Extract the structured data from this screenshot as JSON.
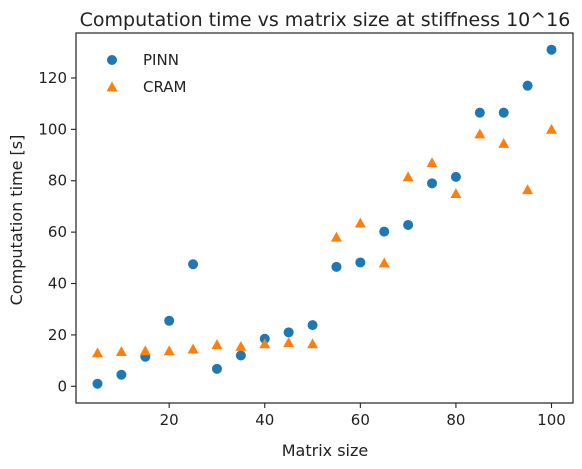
{
  "chart_data": {
    "type": "scatter",
    "title": "Computation time vs matrix size at stiffness 10^16",
    "xlabel": "Matrix size",
    "ylabel": "Computation time [s]",
    "xlim": [
      0.5,
      104.5
    ],
    "ylim": [
      -6.5,
      137.5
    ],
    "xticks": [
      20,
      40,
      60,
      80,
      100
    ],
    "yticks": [
      0,
      20,
      40,
      60,
      80,
      100,
      120
    ],
    "grid": false,
    "legend_position": "top-left",
    "series": [
      {
        "name": "PINN",
        "marker": "circle",
        "color": "#1f77b4",
        "x": [
          5,
          10,
          15,
          20,
          25,
          30,
          35,
          40,
          45,
          50,
          55,
          60,
          65,
          70,
          75,
          80,
          85,
          90,
          95,
          100
        ],
        "y": [
          1,
          4.5,
          11.5,
          25.5,
          47.5,
          6.8,
          12,
          18.5,
          21,
          23.8,
          46.5,
          48.2,
          60.2,
          62.8,
          79,
          81.5,
          106.5,
          106.5,
          117,
          131
        ]
      },
      {
        "name": "CRAM",
        "marker": "triangle",
        "color": "#ff7f0e",
        "x": [
          5,
          10,
          15,
          20,
          25,
          30,
          35,
          40,
          45,
          50,
          55,
          60,
          65,
          70,
          75,
          80,
          85,
          90,
          95,
          100
        ],
        "y": [
          13,
          13.5,
          13.8,
          13.8,
          14.5,
          16.2,
          15.5,
          16.5,
          17,
          16.5,
          58,
          63.5,
          48,
          81.5,
          87,
          75,
          98.2,
          94.5,
          76.5,
          100
        ]
      }
    ]
  }
}
